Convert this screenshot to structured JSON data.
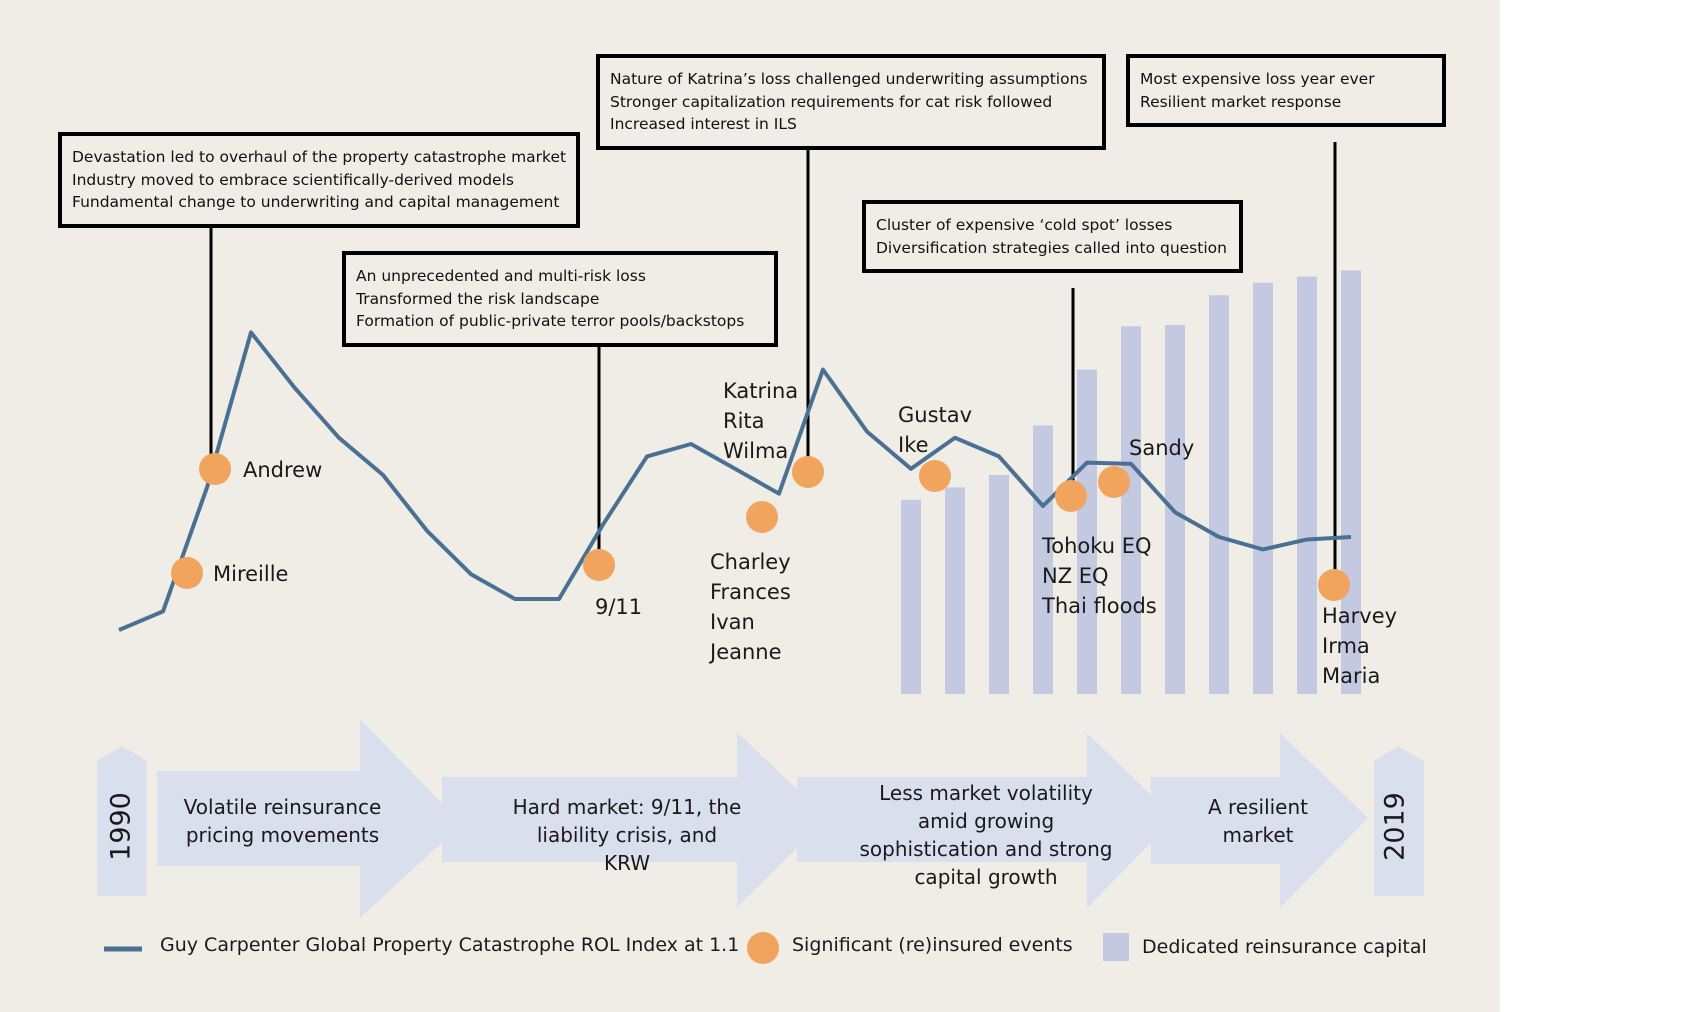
{
  "chart_data": {
    "type": "line",
    "series": [
      {
        "name": "Guy Carpenter Global Property Catastrophe ROL Index at 1.1",
        "values": [
          100,
          115,
          215,
          340,
          295,
          255,
          225,
          180,
          145,
          125,
          125,
          185,
          240,
          250,
          230,
          210,
          310,
          260,
          230,
          255,
          240,
          200,
          235,
          234,
          195,
          175,
          165,
          173,
          175
        ]
      },
      {
        "name": "Dedicated reinsurance capital",
        "values": [
          null,
          null,
          null,
          null,
          null,
          null,
          null,
          null,
          null,
          null,
          null,
          null,
          null,
          null,
          null,
          null,
          null,
          null,
          205,
          215,
          225,
          265,
          310,
          345,
          346,
          370,
          380,
          385,
          390
        ]
      }
    ],
    "events": [
      {
        "year_index": 2,
        "labels": [
          "Mireille"
        ]
      },
      {
        "year_index": 2,
        "labels": [
          "Andrew"
        ]
      },
      {
        "year_index": 11,
        "labels": [
          "9/11"
        ]
      },
      {
        "year_index": 14,
        "labels": [
          "Charley",
          "Frances",
          "Ivan",
          "Jeanne"
        ]
      },
      {
        "year_index": 15,
        "labels": [
          "Katrina",
          "Rita",
          "Wilma"
        ]
      },
      {
        "year_index": 18,
        "labels": [
          "Gustav",
          "Ike"
        ]
      },
      {
        "year_index": 21,
        "labels": [
          "Tohoku EQ",
          "NZ EQ",
          "Thai floods"
        ]
      },
      {
        "year_index": 22,
        "labels": [
          "Sandy"
        ]
      },
      {
        "year_index": 27,
        "labels": [
          "Harvey",
          "Irma",
          "Maria"
        ]
      }
    ],
    "legend": {
      "position": "bottom",
      "line": "Guy Carpenter Global Property Catastrophe ROL Index at 1.1",
      "dots": "Significant (re)insured events",
      "bars": "Dedicated reinsurance capital"
    },
    "callouts": [
      {
        "lines": [
          "Devastation led to overhaul of the property catastrophe market",
          "Industry moved to embrace scientifically-derived models",
          "Fundamental change to underwriting and capital management"
        ]
      },
      {
        "lines": [
          "An unprecedented and multi-risk loss",
          "Transformed the risk landscape",
          "Formation of public-private terror pools/backstops"
        ]
      },
      {
        "lines": [
          "Nature of Katrina’s loss challenged underwriting assumptions",
          "Stronger capitalization requirements for cat risk followed",
          "Increased interest in ILS"
        ]
      },
      {
        "lines": [
          "Cluster of expensive ‘cold spot’ losses",
          "Diversification strategies called into question"
        ]
      },
      {
        "lines": [
          "Most expensive loss year ever",
          "Resilient market response"
        ]
      }
    ],
    "timeline": {
      "start": "1990",
      "end": "2019",
      "phases": [
        "Volatile reinsurance pricing movements",
        "Hard market: 9/11, the liability crisis, and KRW",
        "Less market volatility amid growing sophistication and strong capital growth",
        "A resilient market"
      ]
    }
  },
  "colors": {
    "background": "#f0ede6",
    "line": "#4a7193",
    "dots": "#f0a45e",
    "bars": "#c4c9e2",
    "arrows": "#d9dfed"
  }
}
